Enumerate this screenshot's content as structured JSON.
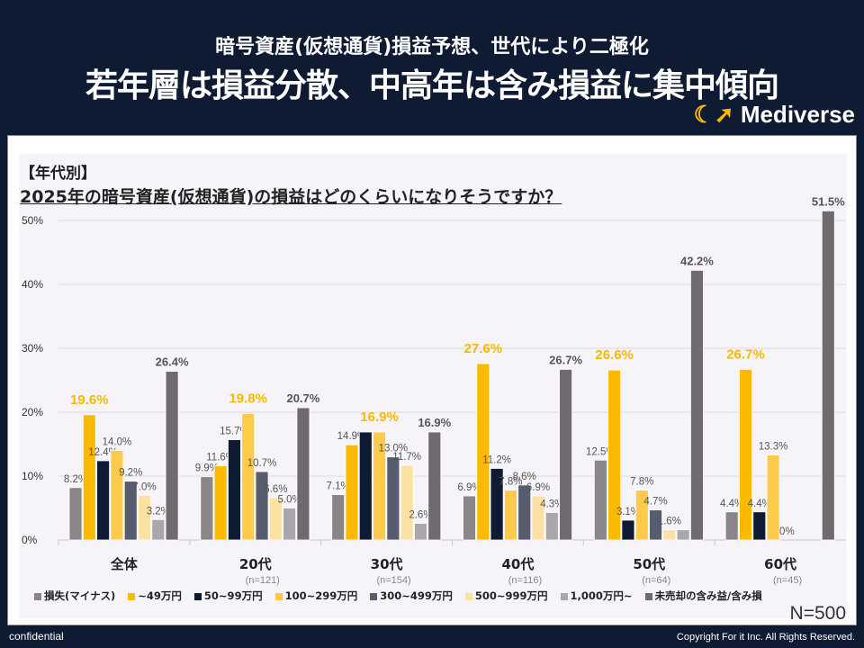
{
  "header": {
    "subtitle": "暗号資産(仮想通貨)損益予想、世代により二極化",
    "title": "若年層は損益分散、中高年は含み損益に集中傾向",
    "logo": "Mediverse"
  },
  "section_label": "【年代別】",
  "footer": {
    "left": "confidential",
    "right": "Copyright For it Inc. All Rights Reserved.",
    "n": "N=500"
  },
  "chart_data": {
    "type": "bar",
    "title": "2025年の暗号資産(仮想通貨)の損益はどのくらいになりそうですか？",
    "ylim": [
      0,
      50
    ],
    "yticks": [
      "0%",
      "10%",
      "20%",
      "30%",
      "40%",
      "50%"
    ],
    "grid": true,
    "legend_position": "bottom",
    "categories": [
      "全体",
      "20代",
      "30代",
      "40代",
      "50代",
      "60代"
    ],
    "category_n": [
      "",
      "(n=121)",
      "(n=154)",
      "(n=116)",
      "(n=64)",
      "(n=45)"
    ],
    "highlight_series": [
      1,
      3,
      3,
      1,
      1,
      1
    ],
    "series": [
      {
        "name": "損失(マイナス)",
        "color": "#8a8589",
        "values": [
          8.2,
          9.9,
          7.1,
          6.9,
          12.5,
          4.4
        ],
        "labels": [
          "8.2%",
          "9.9%",
          "7.1%",
          "6.9%",
          "12.5%",
          "4.4%"
        ]
      },
      {
        "name": "~49万円",
        "color": "#fbb900",
        "values": [
          19.6,
          11.6,
          14.9,
          27.6,
          26.6,
          26.7
        ],
        "labels": [
          "19.6%",
          "11.6%",
          "14.9%",
          "27.6%",
          "26.6%",
          "26.7%"
        ]
      },
      {
        "name": "50~99万円",
        "color": "#0f1a33",
        "values": [
          12.4,
          15.7,
          16.9,
          11.2,
          3.1,
          4.4
        ],
        "labels": [
          "12.4%",
          "15.7%",
          "",
          "11.2%",
          "3.1%",
          "4.4%"
        ]
      },
      {
        "name": "100~299万円",
        "color": "#fdca4c",
        "values": [
          14.0,
          19.8,
          16.9,
          7.8,
          7.8,
          13.3
        ],
        "labels": [
          "14.0%",
          "19.8%",
          "16.9%",
          "7.8%",
          "7.8%",
          "13.3%"
        ]
      },
      {
        "name": "300~499万円",
        "color": "#575d6f",
        "values": [
          9.2,
          10.7,
          13.0,
          8.6,
          4.7,
          0
        ],
        "labels": [
          "9.2%",
          "10.7%",
          "13.0%",
          "8.6%",
          "4.7%",
          "0%"
        ]
      },
      {
        "name": "500~999万円",
        "color": "#fbe2a4",
        "values": [
          7.0,
          6.6,
          11.7,
          6.9,
          1.6,
          0
        ],
        "labels": [
          "7.0%",
          "6.6%",
          "11.7%",
          "6.9%",
          "1.6%",
          ""
        ]
      },
      {
        "name": "1,000万円~",
        "color": "#a9a7ac",
        "values": [
          3.2,
          5.0,
          2.6,
          4.3,
          1.6,
          0
        ],
        "labels": [
          "3.2%",
          "5.0%",
          "2.6%",
          "4.3%",
          "",
          ""
        ]
      },
      {
        "name": "未売却の含み益/含み損",
        "color": "#6f6a6e",
        "values": [
          26.4,
          20.7,
          16.9,
          26.7,
          42.2,
          51.5
        ],
        "labels": [
          "26.4%",
          "20.7%",
          "16.9%",
          "26.7%",
          "42.2%",
          "51.5%"
        ]
      }
    ]
  }
}
